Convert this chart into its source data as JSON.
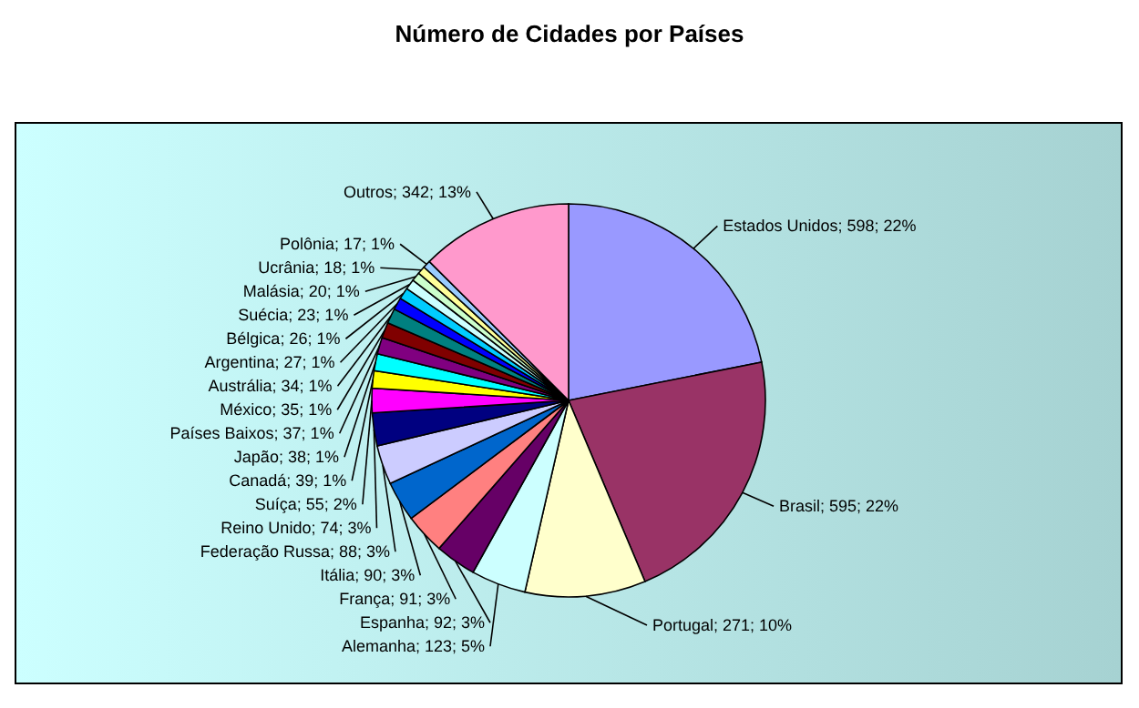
{
  "chart_data": {
    "type": "pie",
    "title": "Número de Cidades por Países",
    "categories": [
      "Estados Unidos",
      "Brasil",
      "Portugal",
      "Alemanha",
      "Espanha",
      "França",
      "Itália",
      "Federação Russa",
      "Reino Unido",
      "Suíça",
      "Canadá",
      "Japão",
      "Países Baixos",
      "México",
      "Austrália",
      "Argentina",
      "Bélgica",
      "Suécia",
      "Malásia",
      "Ucrânia",
      "Polônia",
      "Outros"
    ],
    "values": [
      598,
      595,
      271,
      123,
      92,
      91,
      90,
      88,
      74,
      55,
      39,
      38,
      37,
      35,
      34,
      27,
      26,
      23,
      20,
      18,
      17,
      342
    ],
    "value_labels": [
      "598; 22%",
      "595; 22%",
      "271; 10%",
      "123; 5%",
      "92; 3%",
      "91; 3%",
      "90; 3%",
      "88; 3%",
      "74; 3%",
      "55; 2%",
      "39; 1%",
      "38; 1%",
      "37; 1%",
      "35; 1%",
      "34; 1%",
      "27; 1%",
      "26; 1%",
      "23; 1%",
      "20; 1%",
      "18; 1%",
      "17; 1%",
      "342; 13%"
    ],
    "colors": [
      "#9999ff",
      "#993366",
      "#ffffcc",
      "#ccffff",
      "#660066",
      "#ff8080",
      "#0066cc",
      "#ccccff",
      "#000080",
      "#ff00ff",
      "#ffff00",
      "#00ffff",
      "#800080",
      "#800000",
      "#008080",
      "#0000ff",
      "#00ccff",
      "#ccffff",
      "#ccffcc",
      "#ffff99",
      "#99ccff",
      "#ff99cc"
    ]
  }
}
